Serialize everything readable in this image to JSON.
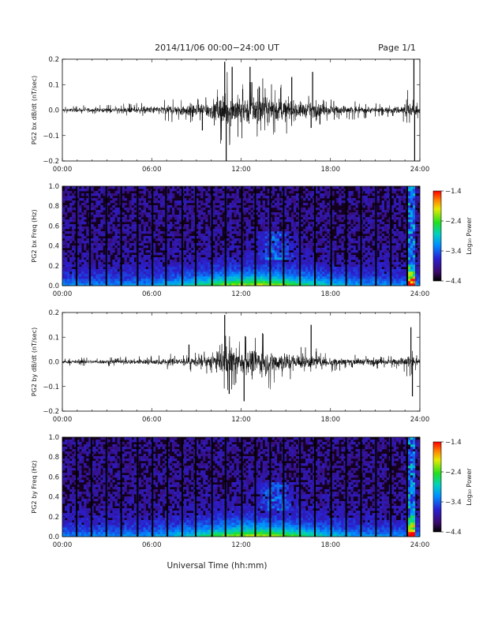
{
  "header": {
    "title": "2014/11/06  00:00−24:00 UT",
    "page": "Page 1/1"
  },
  "footer": {
    "x_axis_title": "Universal Time (hh:mm)"
  },
  "chart_data": [
    {
      "type": "line",
      "ylabel": "PG2 bx dB/dt (nT/sec)",
      "x_ticks": [
        "00:00",
        "06:00",
        "12:00",
        "18:00",
        "24:00"
      ],
      "y_ticks": [
        "0.2",
        "0.1",
        "0.0",
        "−0.1",
        "−0.2"
      ],
      "xlim": [
        0,
        24
      ],
      "ylim": [
        -0.2,
        0.2
      ],
      "x_unit": "hours UT",
      "envelope": {
        "hours": [
          0,
          1,
          2,
          3,
          4,
          5,
          6,
          7,
          8,
          9,
          10,
          10.5,
          11,
          12,
          13,
          14,
          15,
          16,
          17,
          18,
          19,
          20,
          21,
          22,
          22.8,
          23.2,
          23.5,
          24
        ],
        "amplitude": [
          0.01,
          0.012,
          0.015,
          0.014,
          0.018,
          0.02,
          0.025,
          0.03,
          0.04,
          0.045,
          0.06,
          0.09,
          0.11,
          0.09,
          0.1,
          0.085,
          0.07,
          0.055,
          0.045,
          0.035,
          0.03,
          0.025,
          0.02,
          0.02,
          0.03,
          0.06,
          0.04,
          0.02
        ]
      },
      "spikes": [
        {
          "hour": 10.9,
          "value": 0.19
        },
        {
          "hour": 11.0,
          "value": -0.2
        },
        {
          "hour": 11.4,
          "value": 0.17
        },
        {
          "hour": 12.6,
          "value": 0.17
        },
        {
          "hour": 15.4,
          "value": 0.13
        },
        {
          "hour": 16.8,
          "value": 0.15
        },
        {
          "hour": 16.7,
          "value": -0.07
        },
        {
          "hour": 9.4,
          "value": -0.08
        },
        {
          "hour": 23.6,
          "value": 0.2
        },
        {
          "hour": 23.65,
          "value": -0.2
        }
      ]
    },
    {
      "type": "heatmap",
      "ylabel": "PG2 bx Freq (Hz)",
      "x_ticks": [
        "00:00",
        "06:00",
        "12:00",
        "18:00",
        "24:00"
      ],
      "y_ticks": [
        "1.0",
        "0.8",
        "0.6",
        "0.4",
        "0.2",
        "0.0"
      ],
      "xlim": [
        0,
        24
      ],
      "ylim": [
        0,
        1.0
      ],
      "colorbar": {
        "label": "Log₁₀ Power",
        "ticks": [
          "−1.4",
          "−2.4",
          "−3.4",
          "−4.4"
        ],
        "range": [
          -4.4,
          -1.4
        ]
      },
      "dark_gaps_hours": [
        0.9,
        1.8,
        2.9,
        3.9,
        5.0,
        6.0,
        6.9,
        8.0,
        8.9,
        10.0,
        10.9,
        12.0,
        12.9,
        13.9,
        14.8,
        15.9,
        16.9,
        18.0,
        19.0,
        20.0,
        21.0,
        22.0,
        23.1
      ]
    },
    {
      "type": "line",
      "ylabel": "PG2 by dB/dt (nT/sec)",
      "x_ticks": [
        "00:00",
        "06:00",
        "12:00",
        "18:00",
        "24:00"
      ],
      "y_ticks": [
        "0.2",
        "0.1",
        "0.0",
        "−0.1",
        "−0.2"
      ],
      "xlim": [
        0,
        24
      ],
      "ylim": [
        -0.2,
        0.2
      ],
      "x_unit": "hours UT",
      "envelope": {
        "hours": [
          0,
          1,
          2,
          3,
          4,
          5,
          6,
          7,
          8,
          9,
          10,
          10.5,
          11,
          12,
          13,
          14,
          15,
          16,
          17,
          18,
          19,
          20,
          21,
          22,
          22.8,
          23.2,
          23.5,
          24
        ],
        "amplitude": [
          0.012,
          0.012,
          0.014,
          0.014,
          0.016,
          0.018,
          0.02,
          0.022,
          0.028,
          0.03,
          0.04,
          0.08,
          0.1,
          0.085,
          0.09,
          0.08,
          0.065,
          0.05,
          0.04,
          0.03,
          0.026,
          0.022,
          0.02,
          0.02,
          0.03,
          0.05,
          0.035,
          0.02
        ]
      },
      "spikes": [
        {
          "hour": 10.9,
          "value": 0.19
        },
        {
          "hour": 11.2,
          "value": -0.13
        },
        {
          "hour": 8.5,
          "value": 0.07
        },
        {
          "hour": 16.7,
          "value": 0.15
        },
        {
          "hour": 12.2,
          "value": -0.16
        },
        {
          "hour": 23.4,
          "value": 0.14
        },
        {
          "hour": 23.5,
          "value": -0.14
        }
      ]
    },
    {
      "type": "heatmap",
      "ylabel": "PG2 by Freq (Hz)",
      "x_ticks": [
        "00:00",
        "06:00",
        "12:00",
        "18:00",
        "24:00"
      ],
      "y_ticks": [
        "1.0",
        "0.8",
        "0.6",
        "0.4",
        "0.2",
        "0.0"
      ],
      "xlim": [
        0,
        24
      ],
      "ylim": [
        0,
        1.0
      ],
      "colorbar": {
        "label": "Log₁₀ Power",
        "ticks": [
          "−1.4",
          "−2.4",
          "−3.4",
          "−4.4"
        ],
        "range": [
          -4.4,
          -1.4
        ]
      },
      "dark_gaps_hours": [
        0.9,
        1.9,
        2.9,
        3.9,
        5.0,
        6.0,
        7.0,
        8.0,
        8.9,
        10.0,
        10.9,
        12.0,
        12.9,
        13.9,
        14.8,
        15.9,
        16.9,
        18.0,
        19.0,
        20.0,
        21.0,
        22.0,
        23.1
      ]
    }
  ]
}
